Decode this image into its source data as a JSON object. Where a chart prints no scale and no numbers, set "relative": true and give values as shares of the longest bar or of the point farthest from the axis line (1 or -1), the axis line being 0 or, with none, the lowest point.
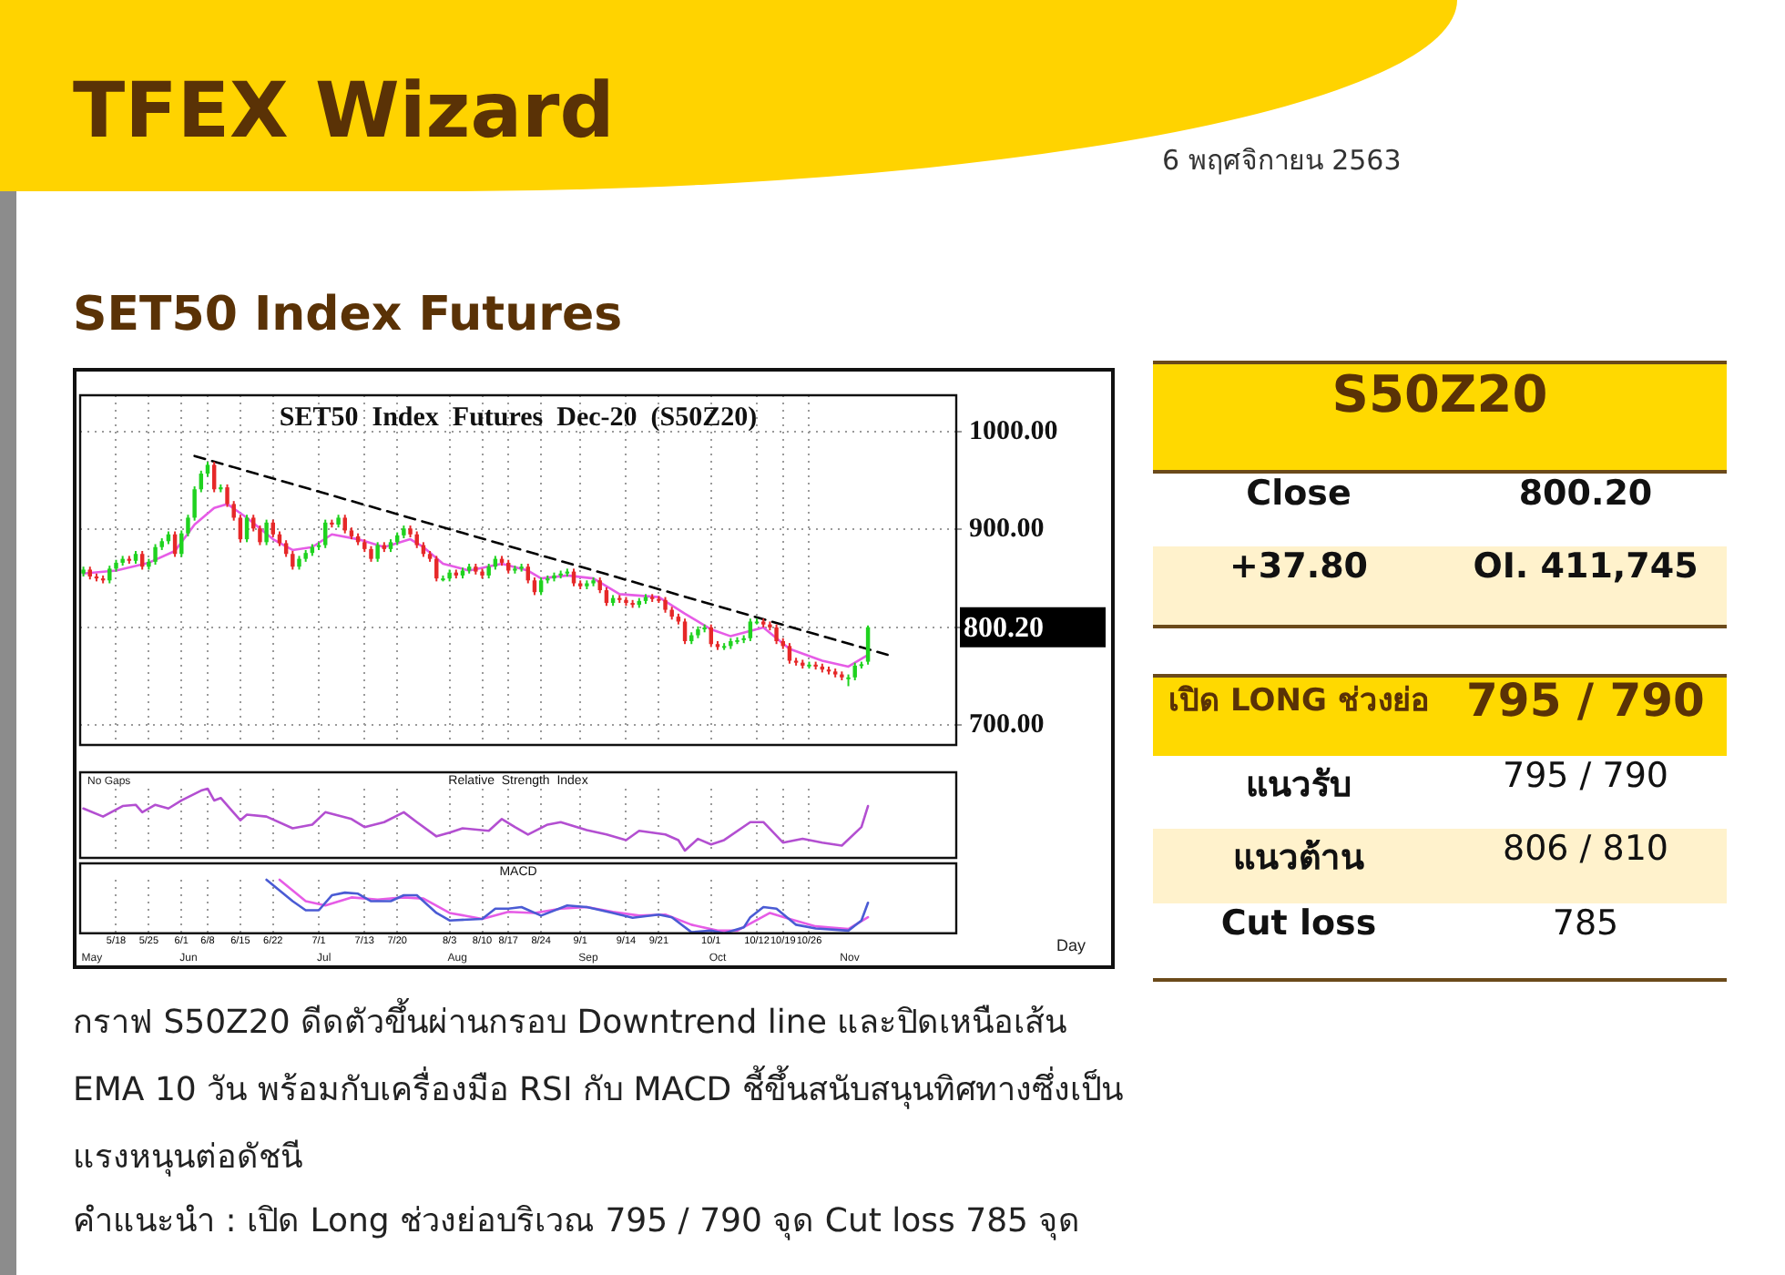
{
  "chart_data": [
    {
      "type": "candlestick",
      "title": "SET50  Index  Futures  Dec-20  (S50Z20)",
      "subtitle": "SET50 Index Futures",
      "annotations": [
        "800.20",
        "TFEX Wizard",
        "6 พฤศจิกายน 2563",
        "กราฟ S50Z20 ดีดตัวขึ้นผ่านกรอบ Downtrend line และปิดเหนือเส้น EMA 10 วัน พร้อมกับเครื่องมือ RSI กับ MACD ชี้ขึ้นสนับสนุนทิศทางซึ่งเป็นแรงหนุนต่อดัชนี",
        "คำแนะนำ : เปิด Long ช่วงย่อบริเวณ 795 / 790 จุด  Cut loss 785 จุด"
      ],
      "categories": [
        null,
        null,
        null,
        null,
        null,
        null,
        null,
        null,
        null,
        null,
        null,
        null,
        null,
        null,
        null,
        null,
        null,
        null,
        null,
        null,
        null,
        null,
        null,
        null,
        null,
        null,
        null,
        null,
        null,
        null,
        null,
        null,
        null,
        null,
        null,
        null,
        null,
        null,
        null,
        null,
        null,
        null,
        null,
        null,
        null,
        null,
        null,
        null,
        null,
        null,
        null,
        null,
        null,
        null,
        null,
        null,
        null,
        null,
        null,
        null,
        null,
        null,
        null,
        null,
        null,
        null,
        null,
        null,
        null,
        null,
        null,
        null,
        null,
        null,
        null,
        null,
        null,
        null,
        null,
        null,
        null,
        null,
        null,
        null,
        null,
        null,
        null,
        null,
        null,
        null,
        null,
        null,
        null,
        null,
        null,
        null,
        null,
        null,
        null,
        null,
        null,
        null,
        null,
        null,
        null,
        null,
        null,
        null,
        null,
        null,
        null,
        null,
        null,
        null,
        null,
        null,
        null,
        null,
        null,
        null,
        null,
        null,
        null,
        null,
        null,
        null,
        null,
        null,
        null,
        null,
        null,
        null,
        null,
        null
      ],
      "ohlc": [
        [
          855,
          862,
          852,
          859
        ],
        [
          859,
          862,
          849,
          852
        ],
        [
          852,
          855,
          847,
          850
        ],
        [
          850,
          853,
          845,
          848
        ],
        [
          848,
          863,
          845,
          860
        ],
        [
          860,
          869,
          857,
          866
        ],
        [
          866,
          873,
          863,
          870
        ],
        [
          870,
          873,
          865,
          868
        ],
        [
          868,
          878,
          865,
          875
        ],
        [
          875,
          878,
          859,
          862
        ],
        [
          862,
          870,
          859,
          867
        ],
        [
          867,
          885,
          864,
          882
        ],
        [
          882,
          891,
          879,
          888
        ],
        [
          888,
          898,
          885,
          895
        ],
        [
          895,
          898,
          872,
          875
        ],
        [
          875,
          899,
          872,
          896
        ],
        [
          896,
          915,
          893,
          912
        ],
        [
          912,
          944,
          909,
          941
        ],
        [
          941,
          960,
          938,
          957
        ],
        [
          957,
          969,
          954,
          966
        ],
        [
          966,
          969,
          938,
          941
        ],
        [
          941,
          946,
          938,
          943
        ],
        [
          943,
          946,
          923,
          926
        ],
        [
          926,
          929,
          909,
          912
        ],
        [
          912,
          915,
          887,
          890
        ],
        [
          890,
          915,
          887,
          912
        ],
        [
          912,
          915,
          898,
          901
        ],
        [
          901,
          904,
          884,
          887
        ],
        [
          887,
          910,
          884,
          907
        ],
        [
          907,
          910,
          892,
          895
        ],
        [
          895,
          898,
          883,
          886
        ],
        [
          886,
          889,
          872,
          875
        ],
        [
          875,
          878,
          859,
          862
        ],
        [
          862,
          873,
          859,
          870
        ],
        [
          870,
          879,
          867,
          876
        ],
        [
          876,
          885,
          873,
          882
        ],
        [
          882,
          887,
          879,
          884
        ],
        [
          884,
          910,
          881,
          907
        ],
        [
          907,
          910,
          902,
          905
        ],
        [
          905,
          915,
          902,
          912
        ],
        [
          912,
          915,
          896,
          899
        ],
        [
          899,
          902,
          890,
          893
        ],
        [
          893,
          896,
          884,
          887
        ],
        [
          887,
          890,
          877,
          880
        ],
        [
          880,
          883,
          867,
          870
        ],
        [
          870,
          887,
          867,
          884
        ],
        [
          884,
          887,
          877,
          880
        ],
        [
          880,
          890,
          877,
          887
        ],
        [
          887,
          897,
          884,
          894
        ],
        [
          894,
          904,
          891,
          901
        ],
        [
          901,
          904,
          892,
          895
        ],
        [
          895,
          898,
          881,
          884
        ],
        [
          884,
          887,
          872,
          875
        ],
        [
          875,
          878,
          867,
          870
        ],
        [
          870,
          873,
          847,
          850
        ],
        [
          850,
          853,
          847,
          850
        ],
        [
          850,
          859,
          847,
          856
        ],
        [
          856,
          859,
          850,
          853
        ],
        [
          853,
          861,
          850,
          858
        ],
        [
          858,
          865,
          855,
          862
        ],
        [
          862,
          865,
          854,
          857
        ],
        [
          857,
          860,
          850,
          853
        ],
        [
          853,
          865,
          850,
          862
        ],
        [
          862,
          873,
          859,
          870
        ],
        [
          870,
          873,
          863,
          866
        ],
        [
          866,
          869,
          855,
          858
        ],
        [
          858,
          863,
          855,
          860
        ],
        [
          860,
          865,
          857,
          862
        ],
        [
          862,
          865,
          845,
          848
        ],
        [
          848,
          851,
          833,
          836
        ],
        [
          836,
          851,
          833,
          848
        ],
        [
          848,
          853,
          845,
          850
        ],
        [
          850,
          856,
          847,
          853
        ],
        [
          853,
          858,
          850,
          855
        ],
        [
          855,
          860,
          852,
          857
        ],
        [
          857,
          860,
          842,
          845
        ],
        [
          845,
          848,
          839,
          842
        ],
        [
          842,
          848,
          839,
          845
        ],
        [
          845,
          851,
          842,
          848
        ],
        [
          848,
          851,
          835,
          838
        ],
        [
          838,
          841,
          822,
          825
        ],
        [
          825,
          833,
          822,
          830
        ],
        [
          830,
          833,
          825,
          828
        ],
        [
          828,
          831,
          822,
          825
        ],
        [
          825,
          828,
          820,
          823
        ],
        [
          823,
          830,
          820,
          827
        ],
        [
          827,
          834,
          824,
          831
        ],
        [
          831,
          834,
          826,
          829
        ],
        [
          829,
          832,
          825,
          828
        ],
        [
          828,
          831,
          815,
          818
        ],
        [
          818,
          821,
          808,
          811
        ],
        [
          811,
          814,
          803,
          806
        ],
        [
          806,
          809,
          783,
          786
        ],
        [
          786,
          795,
          783,
          792
        ],
        [
          792,
          801,
          789,
          798
        ],
        [
          798,
          803,
          795,
          800
        ],
        [
          800,
          803,
          780,
          783
        ],
        [
          783,
          786,
          777,
          780
        ],
        [
          780,
          784,
          777,
          781
        ],
        [
          781,
          789,
          778,
          786
        ],
        [
          786,
          790,
          783,
          787
        ],
        [
          787,
          792,
          784,
          789
        ],
        [
          789,
          809,
          786,
          806
        ],
        [
          806,
          809,
          803,
          806
        ],
        [
          806,
          809,
          800,
          803
        ],
        [
          803,
          806,
          797,
          800
        ],
        [
          800,
          803,
          783,
          786
        ],
        [
          786,
          789,
          778,
          781
        ],
        [
          781,
          784,
          763,
          766
        ],
        [
          766,
          769,
          761,
          764
        ],
        [
          764,
          767,
          758,
          761
        ],
        [
          761,
          765,
          758,
          762
        ],
        [
          762,
          765,
          757,
          760
        ],
        [
          760,
          763,
          754,
          757
        ],
        [
          757,
          760,
          752,
          755
        ],
        [
          755,
          758,
          749,
          752
        ],
        [
          752,
          755,
          746,
          749
        ],
        [
          749,
          752,
          740,
          749
        ],
        [
          749,
          764,
          746,
          761
        ],
        [
          761,
          765,
          758,
          762.4
        ],
        [
          765,
          802,
          762,
          800.2
        ],
        null,
        null,
        null,
        null,
        null,
        null,
        null,
        null,
        null,
        null,
        null,
        null,
        null
      ],
      "series": [
        {
          "type": "line",
          "color": "#e65ce6",
          "values": [
            855,
            null,
            null,
            null,
            null,
            858,
            null,
            null,
            null,
            null,
            866,
            null,
            null,
            null,
            878,
            null,
            null,
            905,
            null,
            null,
            922,
            null,
            926,
            null,
            null,
            912,
            null,
            null,
            null,
            890,
            null,
            null,
            879,
            null,
            null,
            882,
            null,
            null,
            895,
            null,
            null,
            null,
            890,
            null,
            null,
            null,
            882,
            null,
            null,
            null,
            890,
            null,
            882,
            null,
            null,
            865,
            null,
            null,
            null,
            858,
            null,
            null,
            null,
            null,
            865,
            null,
            null,
            null,
            858,
            null,
            850,
            null,
            null,
            null,
            853,
            null,
            null,
            null,
            850,
            null,
            null,
            null,
            834,
            null,
            null,
            null,
            null,
            null,
            831,
            null,
            null,
            null,
            814,
            null,
            null,
            null,
            798,
            null,
            null,
            791,
            null,
            null,
            null,
            null,
            800,
            null,
            null,
            null,
            778,
            null,
            null,
            null,
            null,
            766,
            null,
            null,
            null,
            760,
            null,
            null,
            772,
            null,
            null,
            null,
            null,
            null,
            null,
            null,
            null,
            null,
            null,
            null,
            null,
            null
          ]
        },
        {
          "type": "line",
          "color": "#000000",
          "line_style": "dashed",
          "values": [
            null,
            null,
            null,
            null,
            null,
            null,
            null,
            null,
            null,
            null,
            null,
            null,
            null,
            null,
            null,
            null,
            null,
            975,
            null,
            null,
            null,
            null,
            null,
            null,
            null,
            null,
            null,
            null,
            null,
            null,
            null,
            null,
            null,
            null,
            null,
            null,
            null,
            null,
            null,
            null,
            null,
            null,
            null,
            null,
            null,
            null,
            null,
            null,
            null,
            null,
            null,
            null,
            null,
            null,
            null,
            null,
            null,
            null,
            null,
            null,
            null,
            null,
            null,
            null,
            null,
            null,
            null,
            null,
            null,
            null,
            null,
            null,
            null,
            null,
            null,
            null,
            null,
            null,
            null,
            null,
            null,
            null,
            null,
            null,
            null,
            null,
            null,
            null,
            null,
            null,
            null,
            null,
            null,
            null,
            null,
            null,
            null,
            null,
            null,
            null,
            null,
            null,
            null,
            null,
            null,
            null,
            null,
            null,
            null,
            null,
            null,
            null,
            null,
            null,
            null,
            null,
            null,
            null,
            null,
            null,
            null,
            null,
            null,
            772,
            null,
            null,
            null,
            null,
            null,
            null,
            null,
            null,
            null,
            null
          ]
        }
      ],
      "ylim": [
        680,
        1037
      ],
      "yticks": [
        {
          "value": 700,
          "label": "700.00"
        },
        {
          "value": 800,
          "label": null
        },
        {
          "value": 900,
          "label": "900.00"
        },
        {
          "value": 1000,
          "label": "1000.00"
        }
      ],
      "grid": true,
      "tick_labels": "y"
    },
    {
      "type": "line",
      "title": "Relative  Strength  Index",
      "annotations": [
        "No Gaps"
      ],
      "relative": true,
      "grid": true,
      "tick_labels": false,
      "categories": [
        null,
        null,
        null,
        null,
        null,
        null,
        null,
        null,
        null,
        null,
        null,
        null,
        null,
        null,
        null,
        null,
        null,
        null,
        null,
        null,
        null,
        null,
        null,
        null,
        null,
        null,
        null,
        null,
        null,
        null,
        null,
        null,
        null,
        null,
        null,
        null,
        null,
        null,
        null,
        null,
        null,
        null,
        null,
        null,
        null,
        null,
        null,
        null,
        null,
        null,
        null,
        null,
        null,
        null,
        null,
        null,
        null,
        null,
        null,
        null,
        null,
        null,
        null,
        null,
        null,
        null,
        null,
        null,
        null,
        null,
        null,
        null,
        null,
        null,
        null,
        null,
        null,
        null,
        null,
        null,
        null,
        null,
        null,
        null,
        null,
        null,
        null,
        null,
        null,
        null,
        null,
        null,
        null,
        null,
        null,
        null,
        null,
        null,
        null,
        null,
        null,
        null,
        null,
        null,
        null,
        null,
        null,
        null,
        null,
        null,
        null,
        null,
        null,
        null,
        null,
        null,
        null,
        null,
        null,
        null,
        null,
        null,
        null,
        null,
        null,
        null,
        null,
        null,
        null,
        null,
        null,
        null,
        null,
        null
      ],
      "series": [
        {
          "type": "line",
          "color": "#b34fd1",
          "values": [
            0.68,
            null,
            null,
            0.55,
            null,
            null,
            0.72,
            null,
            0.74,
            0.62,
            null,
            0.74,
            null,
            0.68,
            null,
            0.81,
            null,
            null,
            0.97,
            1,
            0.81,
            0.85,
            null,
            null,
            0.49,
            0.58,
            null,
            null,
            0.55,
            null,
            null,
            null,
            0.36,
            null,
            null,
            0.42,
            null,
            0.62,
            null,
            null,
            null,
            0.51,
            null,
            0.38,
            null,
            null,
            0.46,
            null,
            null,
            0.62,
            null,
            0.46,
            null,
            null,
            0.23,
            null,
            0.29,
            null,
            0.36,
            null,
            null,
            null,
            0.32,
            null,
            0.51,
            null,
            0.38,
            null,
            0.26,
            null,
            null,
            0.42,
            null,
            0.46,
            null,
            null,
            null,
            0.33,
            null,
            null,
            0.26,
            null,
            null,
            0.17,
            null,
            0.32,
            null,
            null,
            null,
            0.26,
            null,
            0.17,
            0,
            null,
            0.19,
            null,
            0.1,
            null,
            0.17,
            null,
            null,
            null,
            0.46,
            null,
            0.46,
            null,
            null,
            0.13,
            null,
            null,
            0.19,
            null,
            null,
            0.13,
            null,
            null,
            0.08,
            null,
            null,
            0.38,
            0.72,
            null,
            null,
            null,
            null,
            null,
            null,
            null,
            null,
            null,
            null,
            null,
            null,
            null
          ]
        }
      ]
    },
    {
      "type": "line",
      "title": "MACD",
      "annotations": [
        "May",
        "Jun",
        "Jul",
        "Aug",
        "Sep",
        "Oct",
        "Nov",
        "Day"
      ],
      "relative": true,
      "grid": true,
      "tick_labels": "x",
      "categories": [
        null,
        null,
        null,
        null,
        null,
        "5/18",
        null,
        null,
        null,
        null,
        "5/25",
        null,
        null,
        null,
        null,
        "6/1",
        null,
        null,
        null,
        "6/8",
        null,
        null,
        null,
        null,
        "6/15",
        null,
        null,
        null,
        null,
        "6/22",
        null,
        null,
        null,
        null,
        null,
        null,
        "7/1",
        null,
        null,
        null,
        null,
        null,
        null,
        "7/13",
        null,
        null,
        null,
        null,
        "7/20",
        null,
        null,
        null,
        null,
        null,
        null,
        null,
        "8/3",
        null,
        null,
        null,
        null,
        "8/10",
        null,
        null,
        null,
        "8/17",
        null,
        null,
        null,
        null,
        "8/24",
        null,
        null,
        null,
        null,
        null,
        "9/1",
        null,
        null,
        null,
        null,
        null,
        null,
        "9/14",
        null,
        null,
        null,
        null,
        "9/21",
        null,
        null,
        null,
        null,
        null,
        null,
        null,
        "10/1",
        null,
        null,
        null,
        null,
        null,
        null,
        "10/12",
        null,
        null,
        null,
        "10/19",
        null,
        null,
        null,
        "10/26",
        null,
        null,
        null,
        null,
        null,
        null,
        null,
        null,
        null,
        null,
        null,
        null,
        null,
        null,
        null,
        null,
        null,
        null,
        null,
        null,
        null,
        null
      ],
      "series": [
        {
          "type": "line",
          "color": "#4a5bd4",
          "values": [
            null,
            null,
            null,
            null,
            null,
            null,
            null,
            null,
            null,
            null,
            null,
            null,
            null,
            null,
            null,
            null,
            null,
            null,
            null,
            null,
            null,
            null,
            null,
            null,
            null,
            null,
            null,
            null,
            1,
            null,
            null,
            null,
            0.6,
            null,
            0.43,
            null,
            0.43,
            null,
            0.71,
            null,
            0.76,
            null,
            0.74,
            null,
            0.6,
            null,
            null,
            0.6,
            null,
            0.71,
            null,
            0.71,
            null,
            null,
            0.38,
            null,
            0.24,
            null,
            null,
            null,
            null,
            0.27,
            null,
            0.46,
            null,
            0.46,
            null,
            0.49,
            null,
            null,
            0.33,
            null,
            null,
            null,
            0.52,
            null,
            null,
            0.49,
            null,
            null,
            null,
            0.38,
            null,
            null,
            0.29,
            null,
            null,
            null,
            0.35,
            null,
            0.3,
            null,
            null,
            0.02,
            null,
            null,
            0.05,
            null,
            0,
            null,
            null,
            0.11,
            0.3,
            null,
            0.49,
            null,
            0.46,
            null,
            null,
            0.16,
            null,
            null,
            0.09,
            null,
            null,
            null,
            null,
            0.05,
            null,
            0.24,
            0.57,
            null,
            null,
            null,
            null,
            null,
            null,
            null,
            null,
            null,
            null,
            null,
            null,
            null
          ]
        },
        {
          "type": "line",
          "color": "#e65ce6",
          "values": [
            null,
            null,
            null,
            null,
            null,
            null,
            null,
            null,
            null,
            null,
            null,
            null,
            null,
            null,
            null,
            null,
            null,
            null,
            null,
            null,
            null,
            null,
            null,
            null,
            null,
            null,
            null,
            null,
            null,
            null,
            1,
            null,
            null,
            null,
            0.6,
            null,
            null,
            0.52,
            null,
            null,
            null,
            0.67,
            null,
            null,
            null,
            0.63,
            null,
            null,
            null,
            0.67,
            null,
            null,
            0.65,
            null,
            null,
            null,
            0.38,
            null,
            null,
            null,
            null,
            0.27,
            null,
            null,
            null,
            0.4,
            null,
            null,
            null,
            0.38,
            null,
            null,
            null,
            0.46,
            null,
            null,
            null,
            0.49,
            null,
            null,
            null,
            0.4,
            null,
            null,
            null,
            0.33,
            null,
            null,
            null,
            0.35,
            null,
            null,
            null,
            0.16,
            null,
            null,
            null,
            0.05,
            null,
            null,
            0.05,
            null,
            null,
            null,
            null,
            0.38,
            null,
            null,
            0.27,
            null,
            null,
            null,
            0.13,
            null,
            null,
            null,
            null,
            0.08,
            null,
            null,
            0.3,
            null,
            null,
            null,
            null,
            null,
            null,
            null,
            null,
            null,
            null,
            null,
            null,
            null
          ]
        }
      ]
    },
    {
      "type": "other",
      "title": "S50Z20",
      "annotations": [
        "Close",
        "800.20",
        "+37.80",
        "OI. 411,745",
        "เปิด LONG ช่วงย่อ",
        "795 / 790",
        "แนวรับ",
        "795 / 790",
        "แนวต้าน",
        "806 / 810",
        "Cut loss",
        "785"
      ]
    }
  ]
}
